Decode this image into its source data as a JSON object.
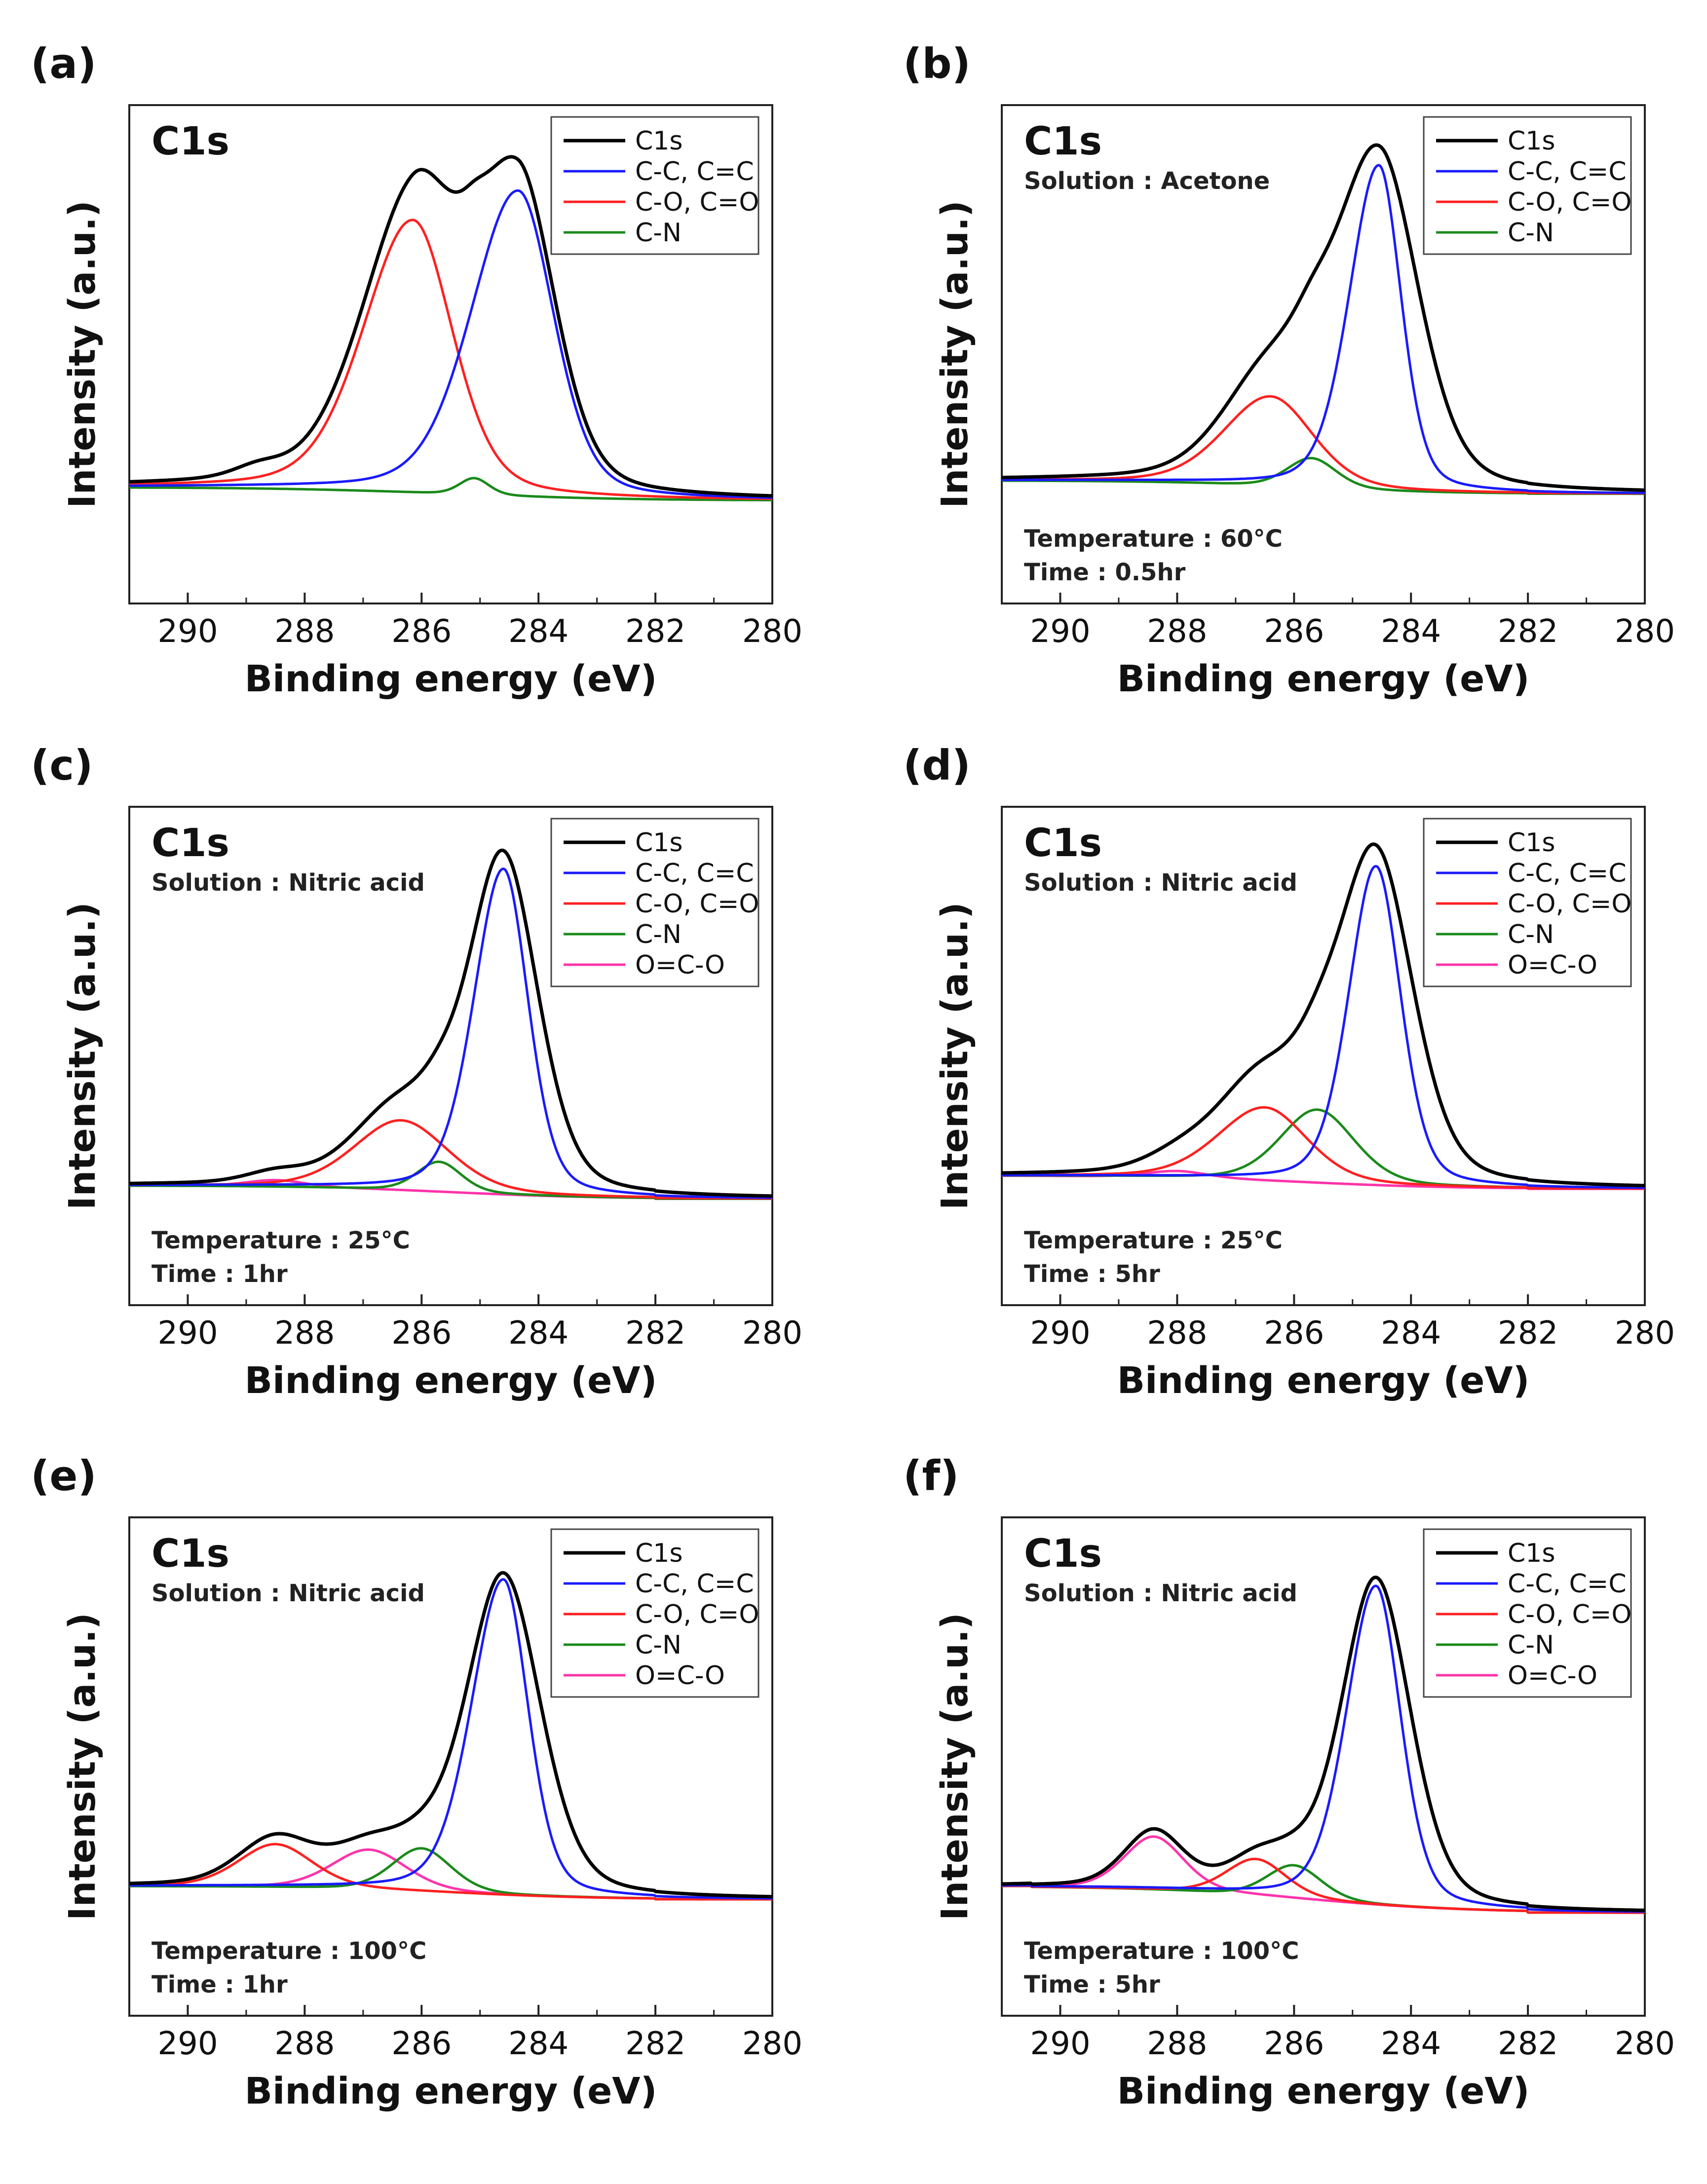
{
  "chart_data": [
    {
      "type": "line",
      "panel": "(a)",
      "peak_label": "C1s",
      "conditions": [],
      "xlabel": "Binding energy (eV)",
      "ylabel": "Intensity (a.u.)",
      "xlim": [
        291,
        280
      ],
      "xticks": [
        "290",
        "288",
        "286",
        "284",
        "282",
        "280"
      ],
      "background": {
        "x_start": 291,
        "x_end": 280,
        "y_start": 0.0,
        "y_end": -0.04
      },
      "series": [
        {
          "name": "C1s",
          "color": "#000000",
          "width": 7,
          "components": [
            [
              286.15,
              0.84,
              1.05,
              0.85
            ],
            [
              284.35,
              0.94,
              0.95,
              0.75
            ],
            [
              285.1,
              0.04,
              0.25,
              0.25
            ],
            [
              288.8,
              0.03,
              0.5,
              0.5
            ]
          ]
        },
        {
          "name": "C-C, C=C",
          "color": "#1a1aff",
          "width": 5,
          "components": [
            [
              284.35,
              0.92,
              0.95,
              0.72
            ]
          ]
        },
        {
          "name": "C-O, C=O",
          "color": "#ff2020",
          "width": 5,
          "components": [
            [
              286.15,
              0.82,
              1.0,
              0.8
            ]
          ]
        },
        {
          "name": "C-N",
          "color": "#1a8a1a",
          "width": 5,
          "components": [
            [
              285.1,
              0.05,
              0.3,
              0.3
            ]
          ]
        }
      ]
    },
    {
      "type": "line",
      "panel": "(b)",
      "peak_label": "C1s",
      "conditions": [
        "Solution : Acetone"
      ],
      "bottom_conditions": [
        "Temperature : 60°C",
        "Time : 0.5hr"
      ],
      "xlabel": "Binding energy (eV)",
      "ylabel": "Intensity (a.u.)",
      "xlim": [
        291,
        280
      ],
      "xticks": [
        "290",
        "288",
        "286",
        "284",
        "282",
        "280"
      ],
      "background": {
        "x_start": 291,
        "x_end": 282,
        "y_start": 0.02,
        "y_end": -0.02,
        "step_center": 286.0,
        "step_width": 1.2
      },
      "series": [
        {
          "name": "C1s",
          "color": "#000000",
          "width": 7,
          "components": [
            [
              284.55,
              1.0,
              0.9,
              0.8
            ],
            [
              286.4,
              0.32,
              0.95,
              0.95
            ],
            [
              285.7,
              0.08,
              0.4,
              0.4
            ]
          ]
        },
        {
          "name": "C-C, C=C",
          "color": "#1a1aff",
          "width": 5,
          "components": [
            [
              284.55,
              0.98,
              0.6,
              0.45
            ]
          ]
        },
        {
          "name": "C-O, C=O",
          "color": "#ff2020",
          "width": 5,
          "components": [
            [
              286.4,
              0.27,
              0.95,
              0.85
            ]
          ]
        },
        {
          "name": "C-N",
          "color": "#1a8a1a",
          "width": 5,
          "components": [
            [
              285.7,
              0.09,
              0.5,
              0.5
            ]
          ]
        }
      ]
    },
    {
      "type": "line",
      "panel": "(c)",
      "peak_label": "C1s",
      "conditions": [
        "Solution : Nitric acid"
      ],
      "bottom_conditions": [
        "Temperature : 25°C",
        "Time : 1hr"
      ],
      "xlabel": "Binding energy (eV)",
      "ylabel": "Intensity (a.u.)",
      "xlim": [
        291,
        280
      ],
      "xticks": [
        "290",
        "288",
        "286",
        "284",
        "282",
        "280"
      ],
      "background": {
        "x_start": 291,
        "x_end": 282,
        "y_start": 0.01,
        "y_end": -0.03,
        "step_center": 285.5,
        "step_width": 1.3
      },
      "series": [
        {
          "name": "C1s",
          "color": "#000000",
          "width": 7,
          "components": [
            [
              284.6,
              1.0,
              0.7,
              0.7
            ],
            [
              286.35,
              0.24,
              0.95,
              0.95
            ],
            [
              285.7,
              0.06,
              0.4,
              0.4
            ],
            [
              288.5,
              0.03,
              0.6,
              0.6
            ]
          ]
        },
        {
          "name": "C-C, C=C",
          "color": "#1a1aff",
          "width": 5,
          "components": [
            [
              284.6,
              0.98,
              0.6,
              0.5
            ]
          ]
        },
        {
          "name": "C-O, C=O",
          "color": "#ff2020",
          "width": 5,
          "components": [
            [
              286.35,
              0.21,
              0.95,
              0.95
            ]
          ]
        },
        {
          "name": "C-N",
          "color": "#1a8a1a",
          "width": 5,
          "components": [
            [
              285.7,
              0.09,
              0.45,
              0.45
            ]
          ]
        },
        {
          "name": "O=C-O",
          "color": "#ff33aa",
          "width": 5,
          "components": [
            [
              288.5,
              0.02,
              0.6,
              0.6
            ]
          ]
        }
      ]
    },
    {
      "type": "line",
      "panel": "(d)",
      "peak_label": "C1s",
      "conditions": [
        "Solution : Nitric acid"
      ],
      "bottom_conditions": [
        "Temperature : 25°C",
        "Time : 5hr"
      ],
      "xlabel": "Binding energy (eV)",
      "ylabel": "Intensity (a.u.)",
      "xlim": [
        291,
        280
      ],
      "xticks": [
        "290",
        "288",
        "286",
        "284",
        "282",
        "280"
      ],
      "background": {
        "x_start": 291,
        "x_end": 282,
        "y_start": 0.04,
        "y_end": 0.0,
        "step_center": 285.8,
        "step_width": 1.3
      },
      "series": [
        {
          "name": "C1s",
          "color": "#000000",
          "width": 7,
          "components": [
            [
              284.6,
              0.98,
              0.75,
              0.75
            ],
            [
              286.5,
              0.3,
              0.95,
              0.95
            ],
            [
              285.6,
              0.12,
              0.5,
              0.5
            ],
            [
              288.0,
              0.04,
              0.7,
              0.7
            ]
          ]
        },
        {
          "name": "C-C, C=C",
          "color": "#1a1aff",
          "width": 5,
          "components": [
            [
              284.6,
              0.96,
              0.55,
              0.5
            ]
          ]
        },
        {
          "name": "C-O, C=O",
          "color": "#ff2020",
          "width": 5,
          "components": [
            [
              286.5,
              0.22,
              0.95,
              0.85
            ]
          ]
        },
        {
          "name": "C-N",
          "color": "#1a8a1a",
          "width": 5,
          "components": [
            [
              285.6,
              0.22,
              0.75,
              0.75
            ]
          ]
        },
        {
          "name": "O=C-O",
          "color": "#ff33aa",
          "width": 5,
          "components": [
            [
              288.0,
              0.02,
              0.6,
              0.6
            ]
          ]
        }
      ]
    },
    {
      "type": "line",
      "panel": "(e)",
      "peak_label": "C1s",
      "conditions": [
        "Solution : Nitric acid"
      ],
      "bottom_conditions": [
        "Temperature : 100°C",
        "Time : 1hr"
      ],
      "xlabel": "Binding energy (eV)",
      "ylabel": "Intensity (a.u.)",
      "xlim": [
        291,
        280
      ],
      "xticks": [
        "290",
        "288",
        "286",
        "284",
        "282",
        "280"
      ],
      "background": {
        "x_start": 291,
        "x_end": 282,
        "y_start": 0.04,
        "y_end": 0.0,
        "step_center": 285.5,
        "step_width": 1.3
      },
      "series": [
        {
          "name": "C1s",
          "color": "#000000",
          "width": 7,
          "components": [
            [
              284.6,
              0.96,
              0.75,
              0.75
            ],
            [
              288.5,
              0.14,
              0.75,
              0.75
            ],
            [
              286.9,
              0.11,
              0.75,
              0.75
            ],
            [
              286.0,
              0.08,
              0.6,
              0.6
            ]
          ]
        },
        {
          "name": "C-C, C=C",
          "color": "#1a1aff",
          "width": 5,
          "components": [
            [
              284.6,
              0.95,
              0.65,
              0.5
            ]
          ]
        },
        {
          "name": "C-O, C=O",
          "color": "#ff2020",
          "width": 5,
          "components": [
            [
              288.5,
              0.13,
              0.75,
              0.75
            ]
          ]
        },
        {
          "name": "C-N",
          "color": "#1a8a1a",
          "width": 5,
          "components": [
            [
              286.0,
              0.13,
              0.6,
              0.6
            ]
          ]
        },
        {
          "name": "O=C-O",
          "color": "#ff33aa",
          "width": 5,
          "components": [
            [
              286.9,
              0.12,
              0.75,
              0.75
            ]
          ]
        }
      ]
    },
    {
      "type": "line",
      "panel": "(f)",
      "peak_label": "C1s",
      "conditions": [
        "Solution : Nitric acid"
      ],
      "bottom_conditions": [
        "Temperature : 100°C",
        "Time : 5hr"
      ],
      "xlabel": "Binding energy (eV)",
      "ylabel": "Intensity (a.u.)",
      "xlim": [
        291,
        280
      ],
      "xticks": [
        "290",
        "288",
        "286",
        "284",
        "282",
        "280"
      ],
      "background": {
        "x_start": 290.5,
        "x_end": 282,
        "y_start": 0.04,
        "y_end": -0.04,
        "step_center": 285.8,
        "step_width": 1.4
      },
      "series": [
        {
          "name": "C1s",
          "color": "#000000",
          "width": 7,
          "components": [
            [
              284.6,
              0.98,
              0.7,
              0.7
            ],
            [
              288.4,
              0.17,
              0.6,
              0.6
            ],
            [
              286.65,
              0.09,
              0.6,
              0.6
            ],
            [
              286.0,
              0.06,
              0.5,
              0.5
            ]
          ]
        },
        {
          "name": "C-C, C=C",
          "color": "#1a1aff",
          "width": 5,
          "components": [
            [
              284.6,
              0.96,
              0.6,
              0.5
            ]
          ]
        },
        {
          "name": "C-O, C=O",
          "color": "#ff2020",
          "width": 5,
          "components": [
            [
              286.65,
              0.11,
              0.6,
              0.6
            ]
          ]
        },
        {
          "name": "C-N",
          "color": "#1a8a1a",
          "width": 5,
          "components": [
            [
              286.0,
              0.1,
              0.55,
              0.55
            ]
          ]
        },
        {
          "name": "O=C-O",
          "color": "#ff33aa",
          "width": 5,
          "components": [
            [
              288.4,
              0.16,
              0.6,
              0.6
            ]
          ]
        }
      ]
    }
  ]
}
